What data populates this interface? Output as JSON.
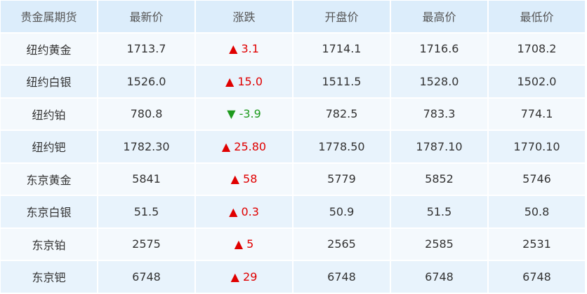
{
  "table": {
    "header": [
      "贵金属期货",
      "最新价",
      "涨跌",
      "开盘价",
      "最高价",
      "最低价"
    ],
    "rows": [
      [
        "纽约黄金",
        "1713.7",
        "▲ 3.1",
        "1714.1",
        "1716.6",
        "1708.2"
      ],
      [
        "纽约白银",
        "1526.0",
        "▲ 15.0",
        "1511.5",
        "1528.0",
        "1502.0"
      ],
      [
        "纽约铂",
        "780.8",
        "▼ -3.9",
        "782.5",
        "783.3",
        "774.1"
      ],
      [
        "纽约钯",
        "1782.30",
        "▲ 25.80",
        "1778.50",
        "1787.10",
        "1770.10"
      ],
      [
        "东京黄金",
        "5841",
        "▲ 58",
        "5779",
        "5852",
        "5746"
      ],
      [
        "东京白银",
        "51.5",
        "▲ 0.3",
        "50.9",
        "51.5",
        "50.8"
      ],
      [
        "东京铂",
        "2575",
        "▲ 5",
        "2565",
        "2585",
        "2531"
      ],
      [
        "东京钯",
        "6748",
        "▲ 29",
        "6748",
        "6748",
        "6748"
      ]
    ]
  }
}
